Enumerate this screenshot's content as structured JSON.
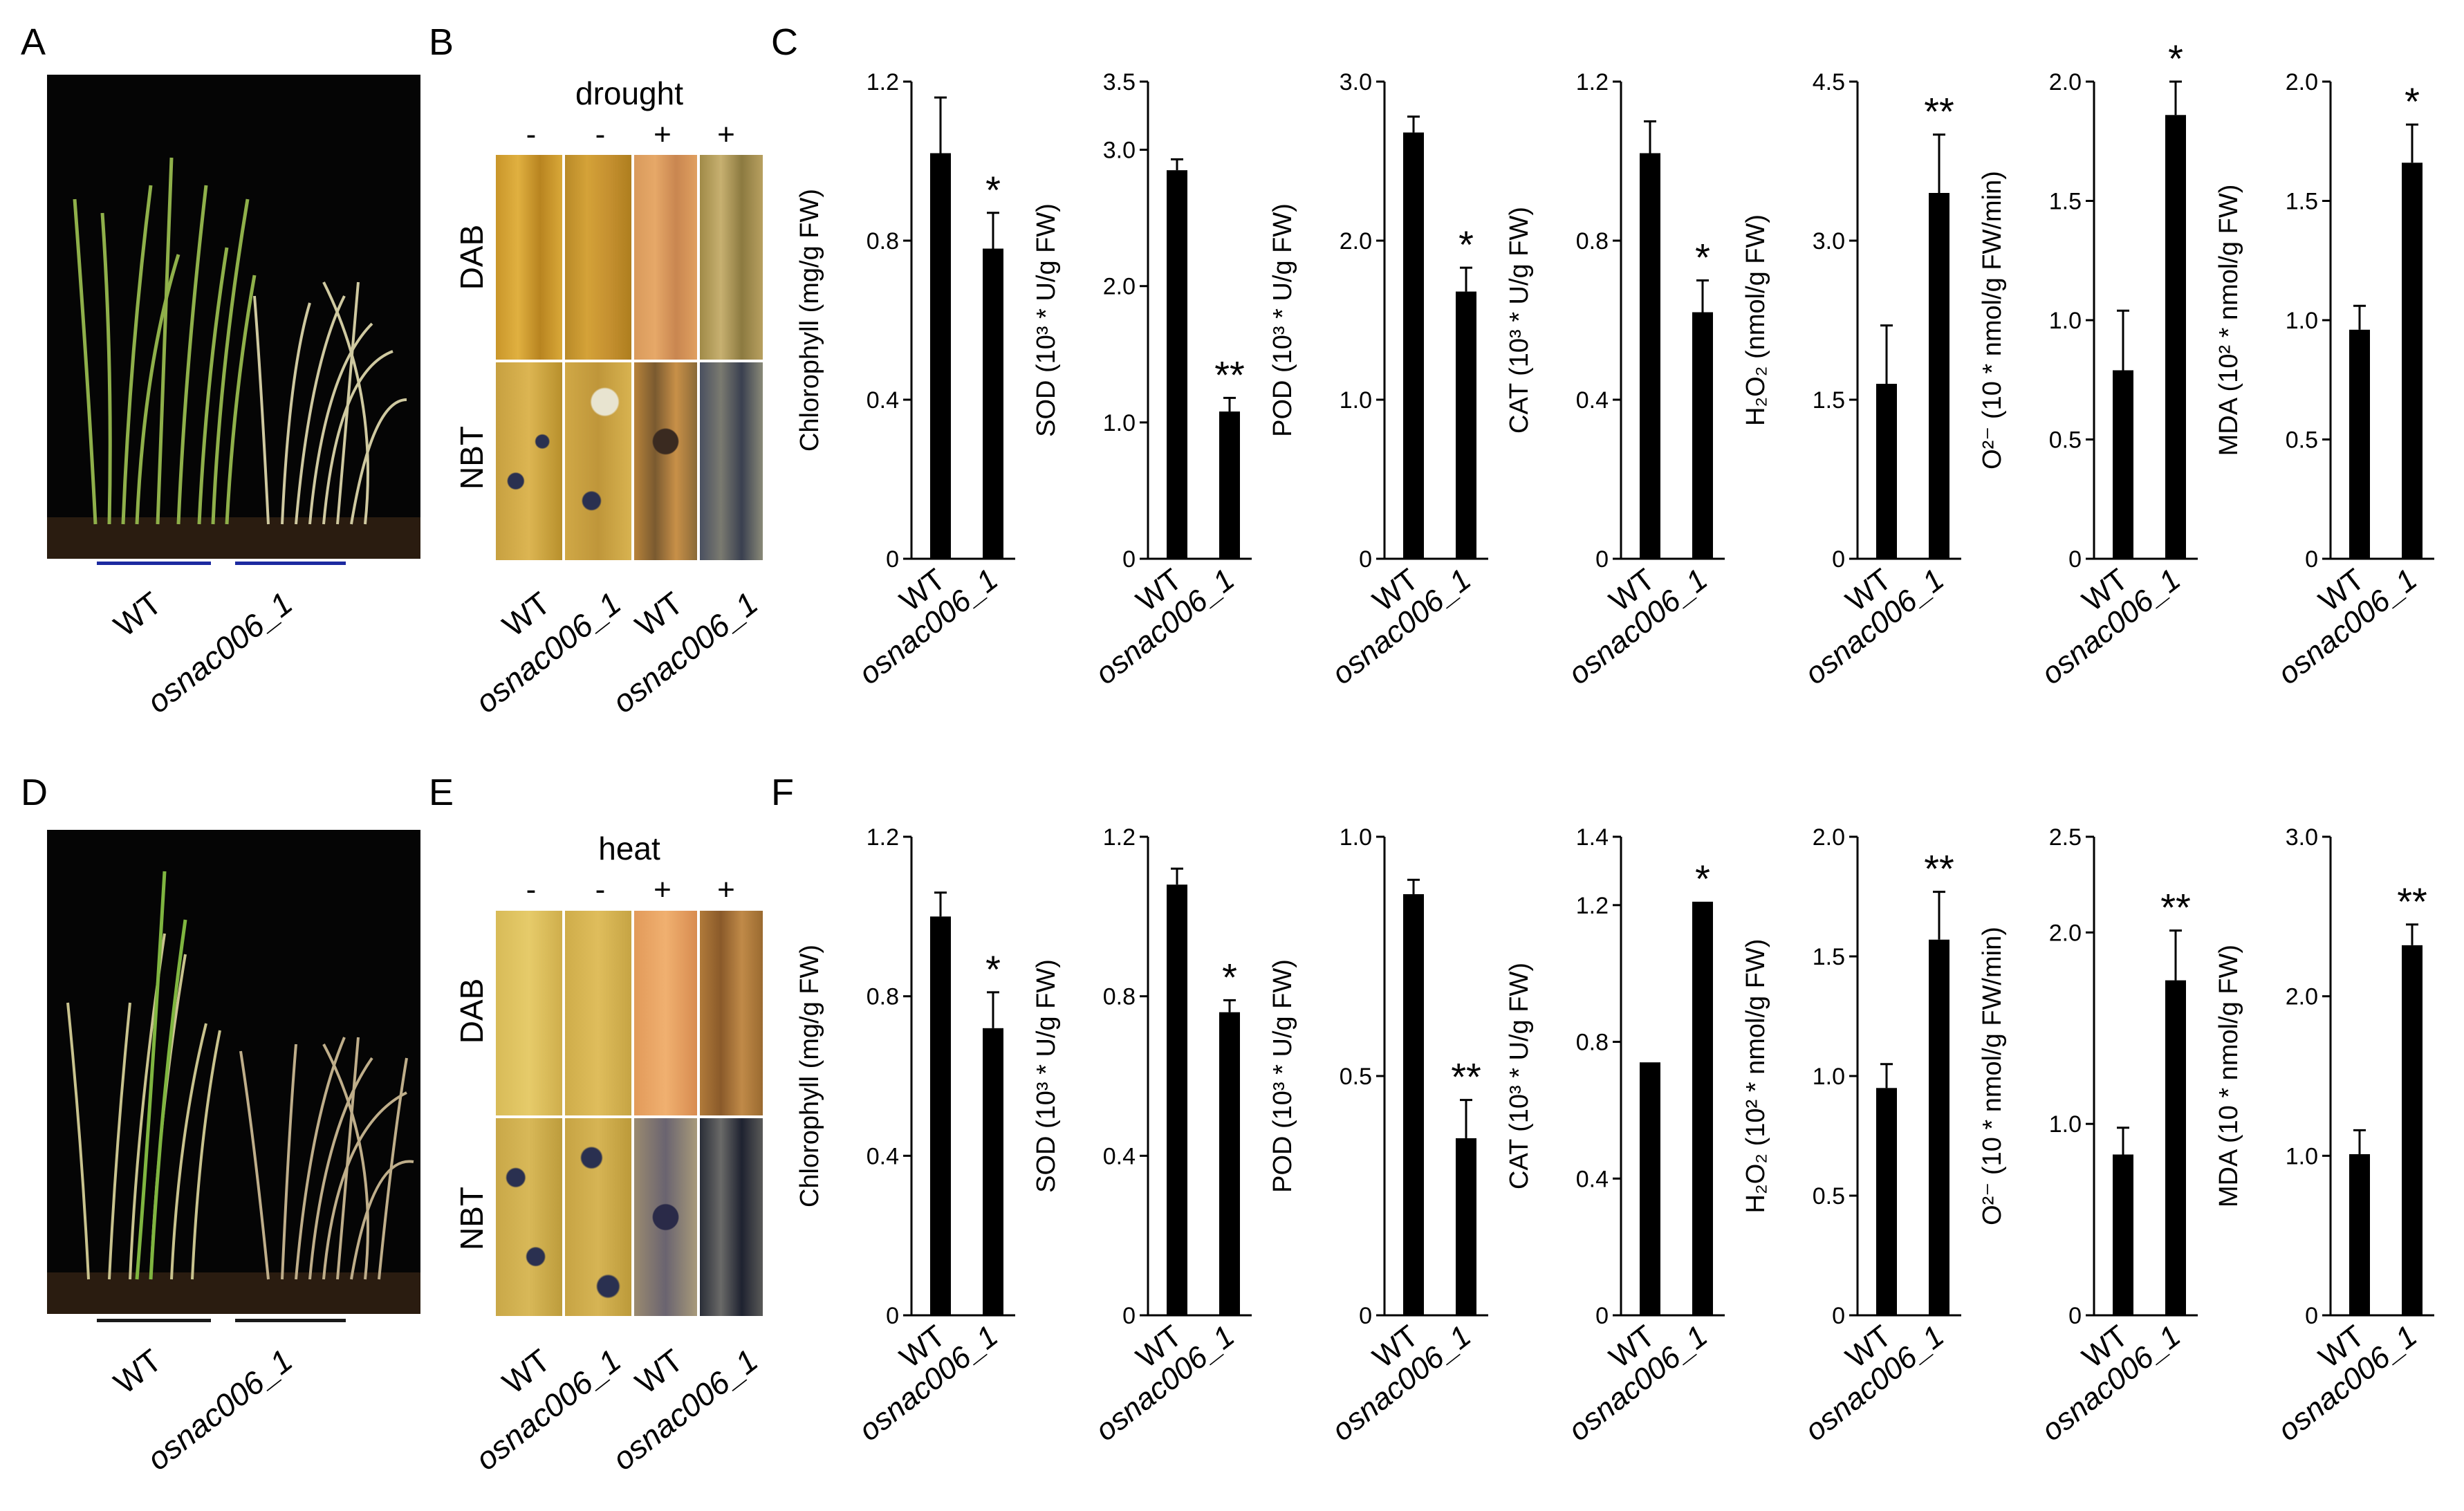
{
  "panel_labels": [
    "A",
    "B",
    "C",
    "D",
    "E",
    "F"
  ],
  "panel_A": {
    "genotypes": [
      "WT",
      "osnac006_1"
    ]
  },
  "panel_D": {
    "genotypes": [
      "WT",
      "osnac006_1"
    ]
  },
  "panel_B": {
    "condition": "drought",
    "signs": [
      "-",
      "-",
      "+",
      "+"
    ],
    "rows": [
      "DAB",
      "NBT"
    ],
    "columns": [
      "WT",
      "osnac006_1",
      "WT",
      "osnac006_1"
    ]
  },
  "panel_E": {
    "condition": "heat",
    "signs": [
      "-",
      "-",
      "+",
      "+"
    ],
    "rows": [
      "DAB",
      "NBT"
    ],
    "columns": [
      "WT",
      "osnac006_1",
      "WT",
      "osnac006_1"
    ]
  },
  "chart_data": [
    {
      "panel": "C",
      "type": "bar",
      "categories": [
        "WT",
        "osnac006_1"
      ],
      "values": [
        1.02,
        0.78
      ],
      "errors": [
        0.14,
        0.09
      ],
      "significance": [
        "",
        "*"
      ],
      "ylabel": "Chlorophyll (mg/g FW)",
      "ylim": [
        0,
        1.2
      ],
      "yticks": [
        "0",
        "0.4",
        "0.8",
        "1.2"
      ]
    },
    {
      "panel": "C",
      "type": "bar",
      "categories": [
        "WT",
        "osnac006_1"
      ],
      "values": [
        2.85,
        1.08
      ],
      "errors": [
        0.08,
        0.1
      ],
      "significance": [
        "",
        "**"
      ],
      "ylabel": "SOD (10³ * U/g FW)",
      "ylim": [
        0,
        3.5
      ],
      "yticks": [
        "0",
        "1.0",
        "2.0",
        "3.0",
        "3.5"
      ]
    },
    {
      "panel": "C",
      "type": "bar",
      "categories": [
        "WT",
        "osnac006_1"
      ],
      "values": [
        2.68,
        1.68
      ],
      "errors": [
        0.1,
        0.15
      ],
      "significance": [
        "",
        "*"
      ],
      "ylabel": "POD (10³ * U/g FW)",
      "ylim": [
        0,
        3.0
      ],
      "yticks": [
        "0",
        "1.0",
        "2.0",
        "3.0"
      ]
    },
    {
      "panel": "C",
      "type": "bar",
      "categories": [
        "WT",
        "osnac006_1"
      ],
      "values": [
        1.02,
        0.62
      ],
      "errors": [
        0.08,
        0.08
      ],
      "significance": [
        "",
        "*"
      ],
      "ylabel": "CAT (10³ * U/g FW)",
      "ylim": [
        0,
        1.2
      ],
      "yticks": [
        "0",
        "0.4",
        "0.8",
        "1.2"
      ]
    },
    {
      "panel": "C",
      "type": "bar",
      "categories": [
        "WT",
        "osnac006_1"
      ],
      "values": [
        1.65,
        3.45
      ],
      "errors": [
        0.55,
        0.55
      ],
      "significance": [
        "",
        "**"
      ],
      "ylabel": "H₂O₂ (nmol/g FW)",
      "ylim": [
        0,
        4.5
      ],
      "yticks": [
        "0",
        "1.5",
        "3.0",
        "4.5"
      ]
    },
    {
      "panel": "C",
      "type": "bar",
      "categories": [
        "WT",
        "osnac006_1"
      ],
      "values": [
        0.79,
        1.86
      ],
      "errors": [
        0.25,
        0.14
      ],
      "significance": [
        "",
        "*"
      ],
      "ylabel": "O²⁻ (10 * nmol/g FW/min)",
      "ylim": [
        0,
        2.0
      ],
      "yticks": [
        "0",
        "0.5",
        "1.0",
        "1.5",
        "2.0"
      ]
    },
    {
      "panel": "C",
      "type": "bar",
      "categories": [
        "WT",
        "osnac006_1"
      ],
      "values": [
        0.96,
        1.66
      ],
      "errors": [
        0.1,
        0.16
      ],
      "significance": [
        "",
        "*"
      ],
      "ylabel": "MDA (10² * nmol/g FW)",
      "ylim": [
        0,
        2.0
      ],
      "yticks": [
        "0",
        "0.5",
        "1.0",
        "1.5",
        "2.0"
      ]
    },
    {
      "panel": "F",
      "type": "bar",
      "categories": [
        "WT",
        "osnac006_1"
      ],
      "values": [
        1.0,
        0.72
      ],
      "errors": [
        0.06,
        0.09
      ],
      "significance": [
        "",
        "*"
      ],
      "ylabel": "Chlorophyll (mg/g FW)",
      "ylim": [
        0,
        1.2
      ],
      "yticks": [
        "0",
        "0.4",
        "0.8",
        "1.2"
      ]
    },
    {
      "panel": "F",
      "type": "bar",
      "categories": [
        "WT",
        "osnac006_1"
      ],
      "values": [
        1.08,
        0.76
      ],
      "errors": [
        0.04,
        0.03
      ],
      "significance": [
        "",
        "*"
      ],
      "ylabel": "SOD (10³ * U/g FW)",
      "ylim": [
        0,
        1.2
      ],
      "yticks": [
        "0",
        "0.4",
        "0.8",
        "1.2"
      ]
    },
    {
      "panel": "F",
      "type": "bar",
      "categories": [
        "WT",
        "osnac006_1"
      ],
      "values": [
        0.88,
        0.37
      ],
      "errors": [
        0.03,
        0.08
      ],
      "significance": [
        "",
        "**"
      ],
      "ylabel": "POD (10³ * U/g FW)",
      "ylim": [
        0,
        1.0
      ],
      "yticks": [
        "0",
        "0.5",
        "1.0"
      ]
    },
    {
      "panel": "F",
      "type": "bar",
      "categories": [
        "WT",
        "osnac006_1"
      ],
      "values": [
        0.74,
        1.21
      ],
      "errors": [
        0.0,
        0.0
      ],
      "significance": [
        "",
        "*"
      ],
      "ylabel": "CAT (10³ * U/g FW)",
      "ylim": [
        0,
        1.4
      ],
      "yticks": [
        "0",
        "0.4",
        "0.8",
        "1.2",
        "1.4"
      ]
    },
    {
      "panel": "F",
      "type": "bar",
      "categories": [
        "WT",
        "osnac006_1"
      ],
      "values": [
        0.95,
        1.57
      ],
      "errors": [
        0.1,
        0.2
      ],
      "significance": [
        "",
        "**"
      ],
      "ylabel": "H₂O₂ (10² * nmol/g FW)",
      "ylim": [
        0,
        2.0
      ],
      "yticks": [
        "0",
        "0.5",
        "1.0",
        "1.5",
        "2.0"
      ]
    },
    {
      "panel": "F",
      "type": "bar",
      "categories": [
        "WT",
        "osnac006_1"
      ],
      "values": [
        0.84,
        1.75
      ],
      "errors": [
        0.14,
        0.26
      ],
      "significance": [
        "",
        "**"
      ],
      "ylabel": "O²⁻ (10 * nmol/g FW/min)",
      "ylim": [
        0,
        2.5
      ],
      "yticks": [
        "0",
        "1.0",
        "2.0",
        "2.5"
      ]
    },
    {
      "panel": "F",
      "type": "bar",
      "categories": [
        "WT",
        "osnac006_1"
      ],
      "values": [
        1.01,
        2.32
      ],
      "errors": [
        0.15,
        0.13
      ],
      "significance": [
        "",
        "**"
      ],
      "ylabel": "MDA (10 * nmol/g FW)",
      "ylim": [
        0,
        3.0
      ],
      "yticks": [
        "0",
        "1.0",
        "2.0",
        "3.0"
      ]
    }
  ]
}
